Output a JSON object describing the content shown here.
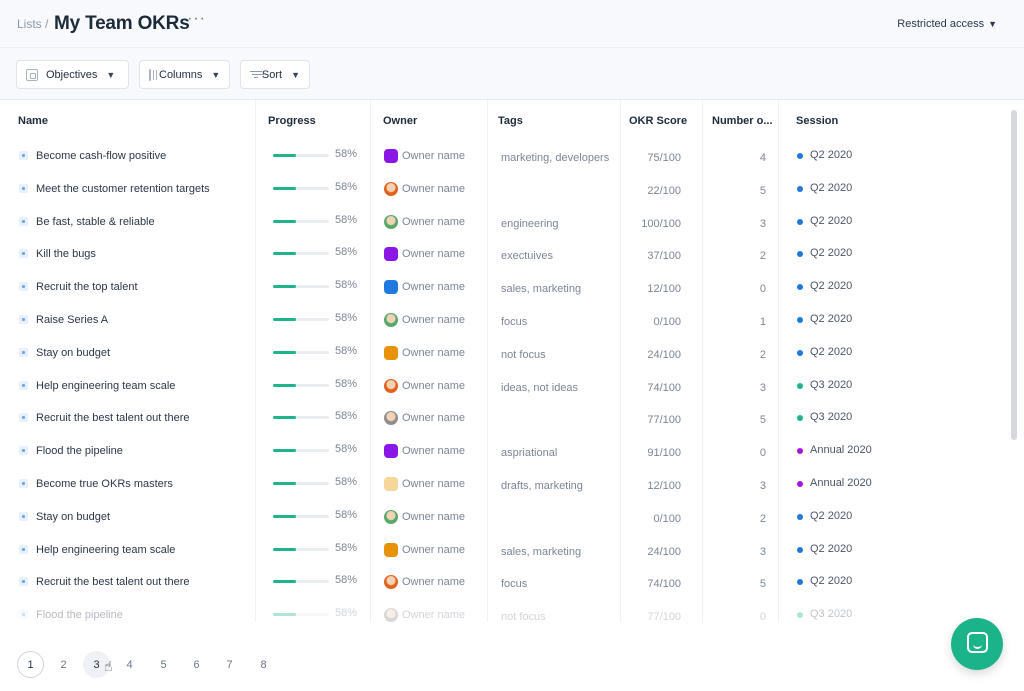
{
  "header": {
    "breadcrumb": "Lists /",
    "title": "My Team OKRs",
    "more": "···",
    "access": "Restricted access"
  },
  "toolbar": {
    "objectives_label": "Objectives",
    "columns_label": "Columns",
    "sort_label": "Sort"
  },
  "columns": {
    "name": "Name",
    "progress": "Progress",
    "owner": "Owner",
    "tags": "Tags",
    "score": "OKR Score",
    "number": "Number o...",
    "session": "Session"
  },
  "colors": {
    "progress": "#1fb58c",
    "session_q2": "#1f7ae0",
    "session_q3": "#1fb58c",
    "session_annual": "#a516d8",
    "chat_button": "#1bb48a"
  },
  "rows": [
    {
      "name": "Become cash-flow positive",
      "progress": 0.58,
      "progress_label": "58%",
      "avatar": "#8a17e6",
      "owner": "Owner name",
      "tags": "marketing, developers",
      "score": "75/100",
      "number": "4",
      "session": "Q2 2020",
      "session_color": "#1f7ae0"
    },
    {
      "name": "Meet the customer retention targets",
      "progress": 0.58,
      "progress_label": "58%",
      "avatar": "photo-orange",
      "owner": "Owner name",
      "tags": "",
      "score": "22/100",
      "number": "5",
      "session": "Q2 2020",
      "session_color": "#1f7ae0"
    },
    {
      "name": "Be fast, stable & reliable",
      "progress": 0.58,
      "progress_label": "58%",
      "avatar": "photo-green",
      "owner": "Owner name",
      "tags": "engineering",
      "score": "100/100",
      "number": "3",
      "session": "Q2 2020",
      "session_color": "#1f7ae0"
    },
    {
      "name": "Kill the bugs",
      "progress": 0.58,
      "progress_label": "58%",
      "avatar": "#8a17e6",
      "owner": "Owner name",
      "tags": "exectuives",
      "score": "37/100",
      "number": "2",
      "session": "Q2 2020",
      "session_color": "#1f7ae0"
    },
    {
      "name": "Recruit the top talent",
      "progress": 0.58,
      "progress_label": "58%",
      "avatar": "#1f7ae0",
      "owner": "Owner name",
      "tags": "sales, marketing",
      "score": "12/100",
      "number": "0",
      "session": "Q2 2020",
      "session_color": "#1f7ae0"
    },
    {
      "name": "Raise Series A",
      "progress": 0.58,
      "progress_label": "58%",
      "avatar": "photo-green",
      "owner": "Owner name",
      "tags": "focus",
      "score": "0/100",
      "number": "1",
      "session": "Q2 2020",
      "session_color": "#1f7ae0"
    },
    {
      "name": "Stay on budget",
      "progress": 0.58,
      "progress_label": "58%",
      "avatar": "#e8920a",
      "owner": "Owner name",
      "tags": "not focus",
      "score": "24/100",
      "number": "2",
      "session": "Q2 2020",
      "session_color": "#1f7ae0"
    },
    {
      "name": "Help engineering team scale",
      "progress": 0.58,
      "progress_label": "58%",
      "avatar": "photo-orange",
      "owner": "Owner name",
      "tags": "ideas, not ideas",
      "score": "74/100",
      "number": "3",
      "session": "Q3 2020",
      "session_color": "#1fb58c"
    },
    {
      "name": "Recruit the best talent out there",
      "progress": 0.58,
      "progress_label": "58%",
      "avatar": "photo-gray",
      "owner": "Owner name",
      "tags": "",
      "score": "77/100",
      "number": "5",
      "session": "Q3 2020",
      "session_color": "#1fb58c"
    },
    {
      "name": "Flood the pipeline",
      "progress": 0.58,
      "progress_label": "58%",
      "avatar": "#8a17e6",
      "owner": "Owner name",
      "tags": "aspriational",
      "score": "91/100",
      "number": "0",
      "session": "Annual 2020",
      "session_color": "#a516d8"
    },
    {
      "name": "Become true OKRs masters",
      "progress": 0.58,
      "progress_label": "58%",
      "avatar": "#f6d69a",
      "owner": "Owner name",
      "tags": "drafts, marketing",
      "score": "12/100",
      "number": "3",
      "session": "Annual 2020",
      "session_color": "#a516d8"
    },
    {
      "name": "Stay on budget",
      "progress": 0.58,
      "progress_label": "58%",
      "avatar": "photo-green",
      "owner": "Owner name",
      "tags": "",
      "score": "0/100",
      "number": "2",
      "session": "Q2 2020",
      "session_color": "#1f7ae0"
    },
    {
      "name": "Help engineering team scale",
      "progress": 0.58,
      "progress_label": "58%",
      "avatar": "#e8920a",
      "owner": "Owner name",
      "tags": "sales, marketing",
      "score": "24/100",
      "number": "3",
      "session": "Q2 2020",
      "session_color": "#1f7ae0"
    },
    {
      "name": "Recruit the best talent out there",
      "progress": 0.58,
      "progress_label": "58%",
      "avatar": "photo-orange",
      "owner": "Owner name",
      "tags": "focus",
      "score": "74/100",
      "number": "5",
      "session": "Q2 2020",
      "session_color": "#1f7ae0"
    },
    {
      "name": "Flood the pipeline",
      "progress": 0.58,
      "progress_label": "58%",
      "avatar": "photo-gray",
      "owner": "Owner name",
      "tags": "not focus",
      "score": "77/100",
      "number": "0",
      "session": "Q3 2020",
      "session_color": "#1fb58c"
    }
  ],
  "pagination": {
    "pages": [
      "1",
      "2",
      "3",
      "4",
      "5",
      "6",
      "7",
      "8"
    ],
    "current": "1",
    "hovered": "3"
  }
}
